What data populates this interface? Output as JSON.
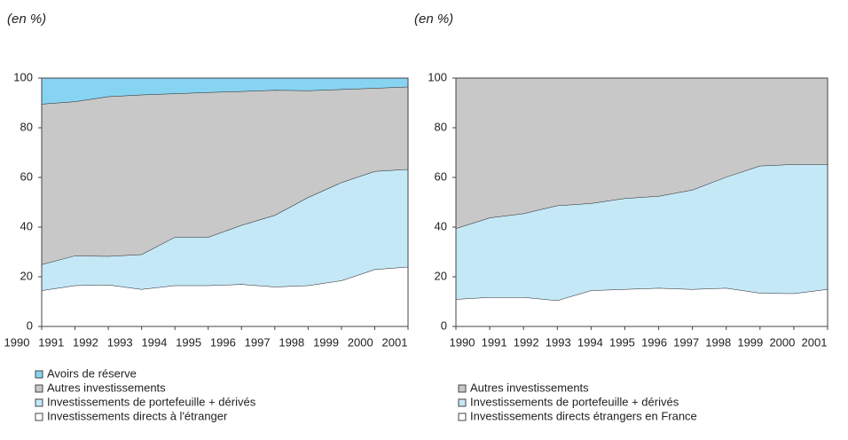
{
  "chart_data": [
    {
      "type": "area",
      "subtitle": "(en %)",
      "categories": [
        "1990",
        "1991",
        "1992",
        "1993",
        "1994",
        "1995",
        "1996",
        "1997",
        "1998",
        "1999",
        "2000",
        "2001"
      ],
      "ylim": [
        0,
        100
      ],
      "yticks": [
        0,
        20,
        40,
        60,
        80,
        100
      ],
      "series": [
        {
          "name": "Avoirs de réserve",
          "color": "#87d3f2",
          "values": [
            10.4,
            9.4,
            7.4,
            6.7,
            6.2,
            5.7,
            5.3,
            4.8,
            5,
            4.5,
            4,
            3.5
          ]
        },
        {
          "name": "Autres investissements",
          "color": "#c8c8c8",
          "values": [
            64.6,
            62.1,
            64.3,
            64.3,
            57.8,
            58.3,
            53.9,
            50.4,
            43,
            37.5,
            33.5,
            33.2
          ]
        },
        {
          "name": "Investissements de portefeuille + dérivés",
          "color": "#c5e8f7",
          "values": [
            10.5,
            12,
            11.5,
            14,
            19.5,
            19.5,
            23.8,
            28.8,
            35.5,
            39.5,
            39.5,
            39.3
          ]
        },
        {
          "name": "Investissements directs à l'étranger",
          "color": "#ffffff",
          "values": [
            14.5,
            16.5,
            16.8,
            15,
            16.5,
            16.5,
            17,
            16,
            16.5,
            18.5,
            23,
            24
          ]
        }
      ]
    },
    {
      "type": "area",
      "subtitle": "(en %)",
      "categories": [
        "1990",
        "1991",
        "1992",
        "1993",
        "1994",
        "1995",
        "1996",
        "1997",
        "1998",
        "1999",
        "2000",
        "2001"
      ],
      "ylim": [
        0,
        100
      ],
      "yticks": [
        0,
        20,
        40,
        60,
        80,
        100
      ],
      "series": [
        {
          "name": "Autres investissements",
          "color": "#c8c8c8",
          "values": [
            60.5,
            56.2,
            54.5,
            51.3,
            50.4,
            48.4,
            47.5,
            45,
            39.8,
            35.3,
            34.7,
            34.7
          ]
        },
        {
          "name": "Investissements de portefeuille + dérivés",
          "color": "#c5e8f7",
          "values": [
            28.5,
            32,
            33.7,
            38.2,
            35.1,
            36.6,
            37,
            40,
            44.7,
            51.2,
            52,
            50.3
          ]
        },
        {
          "name": "Investissements directs étrangers en France",
          "color": "#ffffff",
          "values": [
            11,
            11.8,
            11.8,
            10.5,
            14.5,
            15,
            15.5,
            15,
            15.5,
            13.5,
            13.3,
            15
          ]
        }
      ]
    }
  ]
}
